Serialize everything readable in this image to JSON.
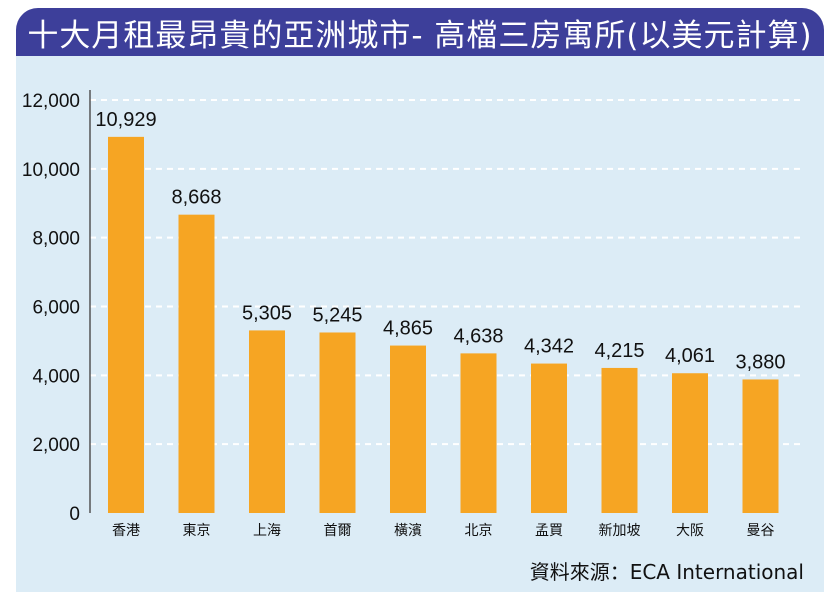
{
  "title": "十大月租最昂貴的亞洲城市- 高檔三房寓所(以美元計算)",
  "source": "資料來源：ECA International",
  "colors": {
    "title_bar": "#3d3f9a",
    "panel": "#dcecf6",
    "bar": "#f6a523",
    "grid": "#ffffff"
  },
  "chart_data": {
    "type": "bar",
    "title": "十大月租最昂貴的亞洲城市- 高檔三房寓所(以美元計算)",
    "categories": [
      "香港",
      "東京",
      "上海",
      "首爾",
      "橫濱",
      "北京",
      "孟買",
      "新加坡",
      "大阪",
      "曼谷"
    ],
    "values": [
      10929,
      8668,
      5305,
      5245,
      4865,
      4638,
      4342,
      4215,
      4061,
      3880
    ],
    "value_labels": [
      "10,929",
      "8,668",
      "5,305",
      "5,245",
      "4,865",
      "4,638",
      "4,342",
      "4,215",
      "4,061",
      "3,880"
    ],
    "yticks": [
      0,
      2000,
      4000,
      6000,
      8000,
      10000,
      12000
    ],
    "ytick_labels": [
      "0",
      "2,000",
      "4,000",
      "6,000",
      "8,000",
      "10,000",
      "12,000"
    ],
    "ylim": [
      0,
      12000
    ],
    "xlabel": "",
    "ylabel": "",
    "grid": "dashed horizontal",
    "legend": "none"
  }
}
